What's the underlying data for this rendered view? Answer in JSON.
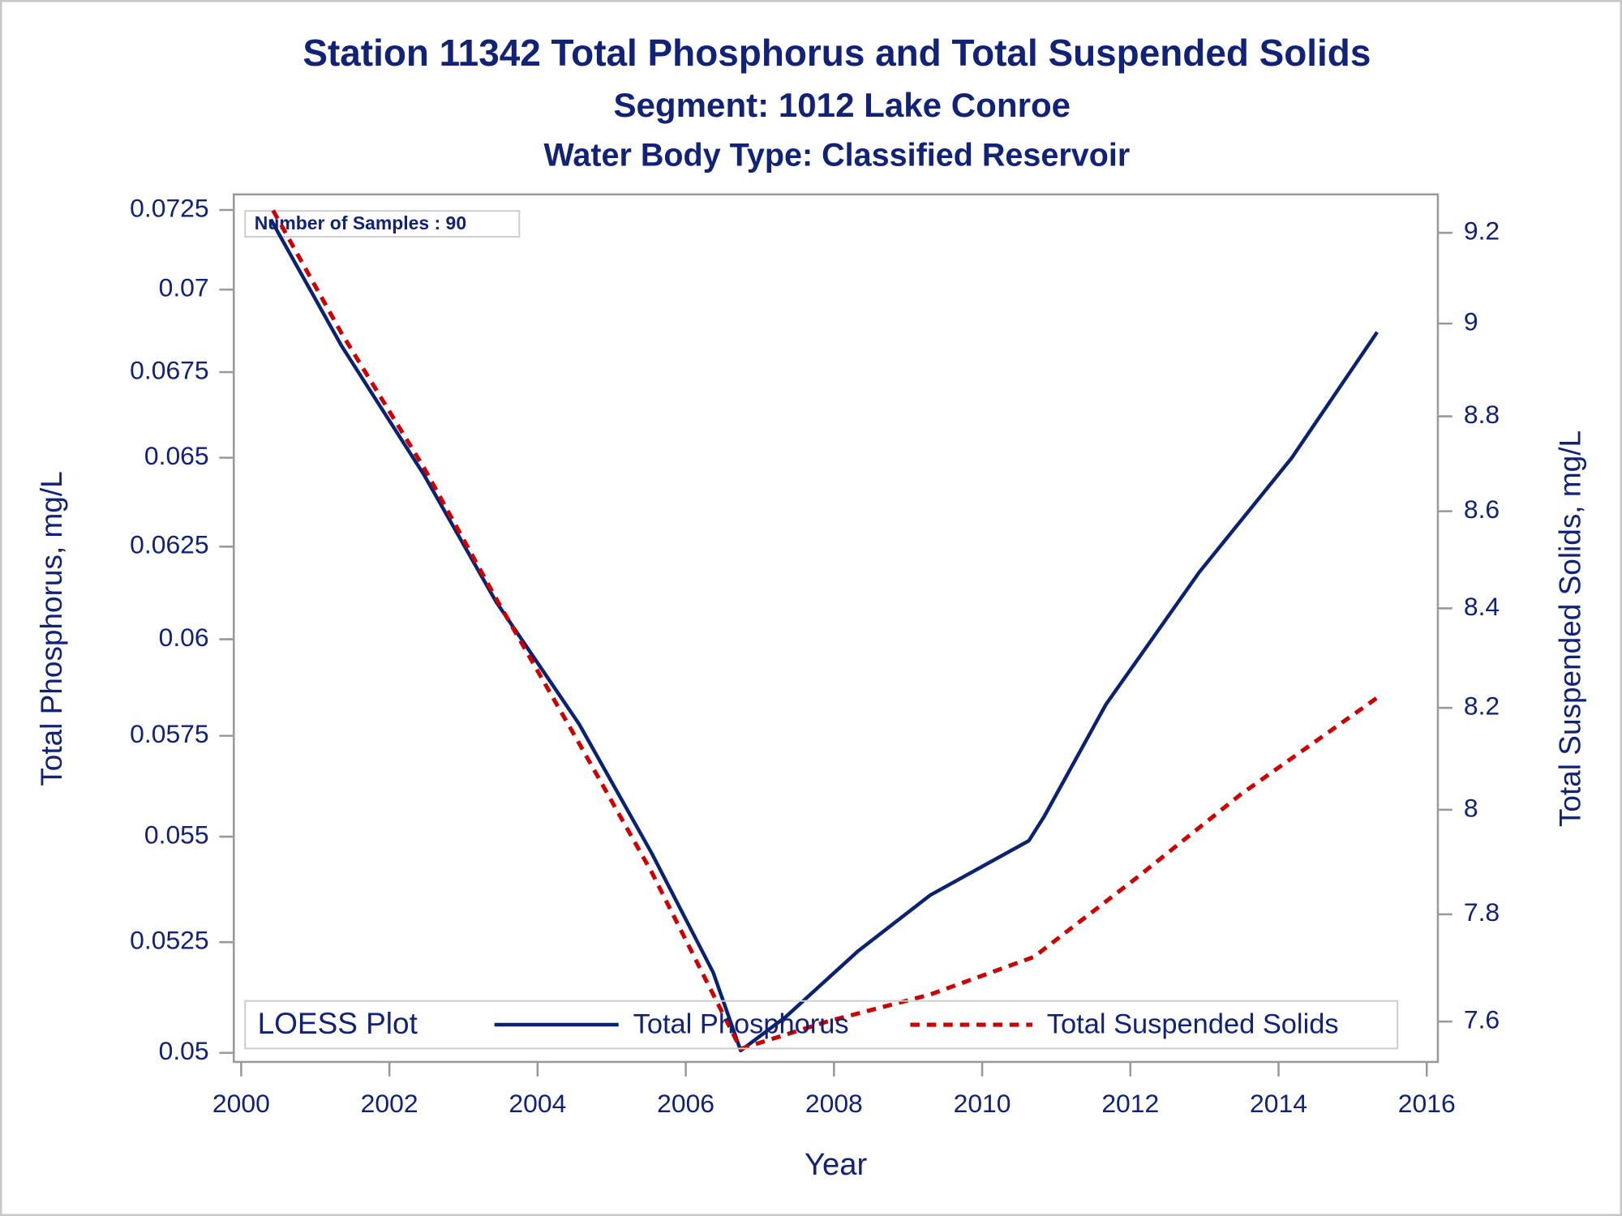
{
  "chart_data": {
    "type": "line",
    "title": "Station 11342  Total Phosphorus and Total Suspended Solids",
    "subtitle": "Segment: 1012  Lake Conroe",
    "subtitle2": "Water Body Type: Classified Reservoir",
    "annotation": "Number of Samples : 90",
    "x_label": "Year",
    "y_label": "Total Phosphorus, mg/L",
    "y2_label": "Total Suspended Solids, mg/L",
    "legend_title": "LOESS Plot",
    "legend_position": "bottom",
    "xlim": [
      1999.9,
      2016.15
    ],
    "xticks": [
      2000,
      2002,
      2004,
      2006,
      2008,
      2010,
      2012,
      2014,
      2016
    ],
    "ylim": [
      0.0498,
      0.073
    ],
    "yticks": [
      0.05,
      0.0525,
      0.055,
      0.0575,
      0.06,
      0.0625,
      0.065,
      0.0675,
      0.07,
      0.0725
    ],
    "ylog": true,
    "y2lim": [
      7.526,
      9.286
    ],
    "y2ticks": [
      7.6,
      7.8,
      8,
      8.2,
      8.4,
      8.6,
      8.8,
      9,
      9.2
    ],
    "y2log": true,
    "series": [
      {
        "name": "Total Phosphorus",
        "color": "#0a2270",
        "dash": false,
        "axis": "y",
        "x": [
          2000.4,
          2001.35,
          2002.47,
          2003.44,
          2004.56,
          2005.54,
          2006.37,
          2006.74,
          2007.35,
          2008.33,
          2009.3,
          2010.63,
          2010.84,
          2011.67,
          2012.93,
          2014.18,
          2015.33
        ],
        "values": [
          0.0722,
          0.0683,
          0.0645,
          0.061,
          0.0578,
          0.0546,
          0.0518,
          0.05005,
          0.0508,
          0.0523,
          0.0536,
          0.0549,
          0.0555,
          0.0583,
          0.0618,
          0.065,
          0.0687
        ]
      },
      {
        "name": "Total Suspended Solids",
        "color": "#cc0000",
        "dash": true,
        "axis": "y2",
        "x": [
          2000.43,
          2001.35,
          2002.47,
          2003.44,
          2004.56,
          2005.54,
          2006.37,
          2006.74,
          2007.91,
          2009.3,
          2010.7,
          2012.09,
          2013.49,
          2015.33
        ],
        "values": [
          9.25,
          8.98,
          8.69,
          8.42,
          8.13,
          7.88,
          7.65,
          7.55,
          7.6,
          7.65,
          7.72,
          7.87,
          8.03,
          8.22
        ]
      }
    ]
  }
}
